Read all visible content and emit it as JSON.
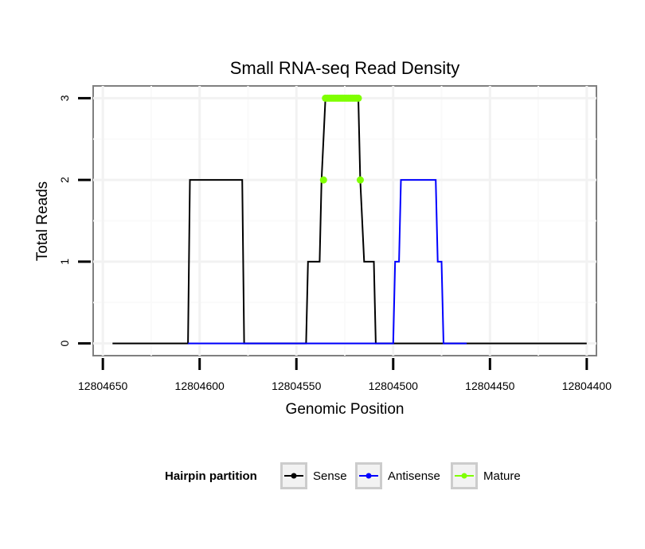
{
  "chart_data": {
    "type": "line",
    "title": "Small RNA-seq Read Density",
    "xlabel": "Genomic Position",
    "ylabel": "Total Reads",
    "xlim": [
      12804655,
      12804395
    ],
    "ylim": [
      -0.15,
      3.15
    ],
    "x_ticks": [
      12804650,
      12804600,
      12804550,
      12804500,
      12804450,
      12804400
    ],
    "x_tick_labels": [
      "12804650",
      "12804600",
      "12804550",
      "12804500",
      "12804450",
      "12804400"
    ],
    "x_minor_ticks": [
      12804625,
      12804575,
      12804525,
      12804475,
      12804425
    ],
    "y_ticks": [
      0,
      1,
      2,
      3
    ],
    "y_tick_labels": [
      "0",
      "1",
      "2",
      "3"
    ],
    "y_minor_ticks": [
      0.5,
      1.5,
      2.5
    ],
    "grid": true,
    "legend_title": "Hairpin partition",
    "legend_position": "bottom",
    "series": [
      {
        "name": "Sense",
        "color": "#000000",
        "mode": "line",
        "points": [
          [
            12804645,
            0
          ],
          [
            12804606,
            0
          ],
          [
            12804605,
            2
          ],
          [
            12804578,
            2
          ],
          [
            12804577,
            0
          ],
          [
            12804545,
            0
          ],
          [
            12804544,
            1
          ],
          [
            12804538,
            1
          ],
          [
            12804537,
            2
          ],
          [
            12804535,
            3
          ],
          [
            12804518,
            3
          ],
          [
            12804517,
            2
          ],
          [
            12804515,
            1
          ],
          [
            12804510,
            1
          ],
          [
            12804509,
            0
          ],
          [
            12804400,
            0
          ]
        ]
      },
      {
        "name": "Antisense",
        "color": "#0000ff",
        "mode": "line",
        "points": [
          [
            12804606,
            0
          ],
          [
            12804500,
            0
          ],
          [
            12804499,
            1
          ],
          [
            12804497,
            1
          ],
          [
            12804496,
            2
          ],
          [
            12804478,
            2
          ],
          [
            12804477,
            1
          ],
          [
            12804475,
            1
          ],
          [
            12804474,
            0
          ],
          [
            12804462,
            0
          ]
        ]
      },
      {
        "name": "Mature",
        "color": "#7fff00",
        "mode": "points",
        "points": [
          [
            12804536,
            2
          ],
          [
            12804535,
            3
          ],
          [
            12804534,
            3
          ],
          [
            12804533,
            3
          ],
          [
            12804532,
            3
          ],
          [
            12804531,
            3
          ],
          [
            12804530,
            3
          ],
          [
            12804529,
            3
          ],
          [
            12804528,
            3
          ],
          [
            12804527,
            3
          ],
          [
            12804526,
            3
          ],
          [
            12804525,
            3
          ],
          [
            12804524,
            3
          ],
          [
            12804523,
            3
          ],
          [
            12804522,
            3
          ],
          [
            12804521,
            3
          ],
          [
            12804520,
            3
          ],
          [
            12804519,
            3
          ],
          [
            12804518,
            3
          ],
          [
            12804517,
            2
          ]
        ]
      }
    ]
  }
}
